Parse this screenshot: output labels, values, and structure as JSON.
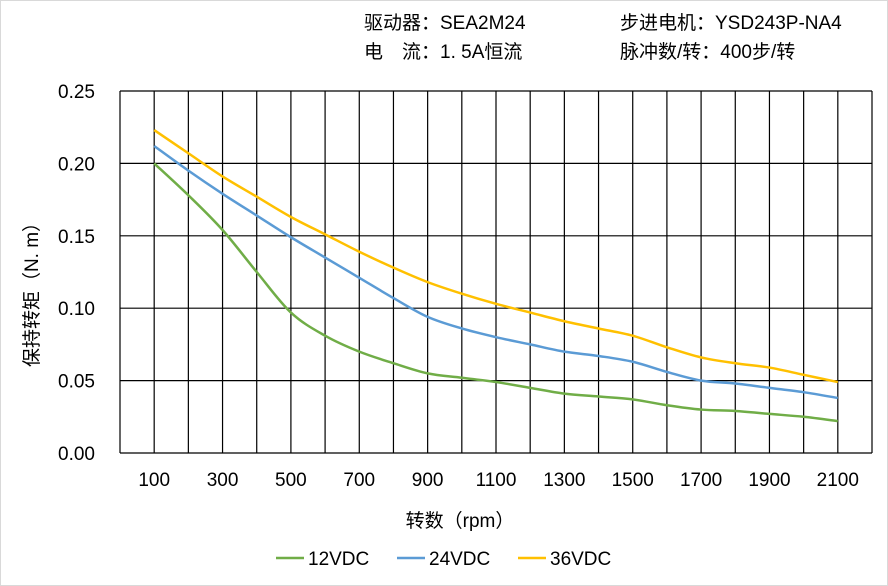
{
  "header": {
    "driver": "驱动器：SEA2M24",
    "motor": "步进电机：YSD243P-NA4",
    "current": "电　流：1. 5A恒流",
    "pulses": "脉冲数/转：400步/转"
  },
  "chart_data": {
    "type": "line",
    "title": "",
    "xlabel": "转数（rpm）",
    "ylabel": "保持转矩（N. m）",
    "xlim": [
      0,
      2200
    ],
    "ylim": [
      0,
      0.25
    ],
    "grid": true,
    "legend": "bottom",
    "x_ticks": [
      "100",
      "300",
      "500",
      "700",
      "900",
      "1100",
      "1300",
      "1500",
      "1700",
      "1900",
      "2100"
    ],
    "y_ticks": [
      "0.00",
      "0.05",
      "0.10",
      "0.15",
      "0.20",
      "0.25"
    ],
    "x": [
      100,
      200,
      300,
      400,
      500,
      600,
      700,
      800,
      900,
      1000,
      1100,
      1200,
      1300,
      1400,
      1500,
      1600,
      1700,
      1800,
      1900,
      2000,
      2100
    ],
    "series": [
      {
        "name": "12VDC",
        "color": "#70ad47",
        "values": [
          0.2,
          0.178,
          0.154,
          0.125,
          0.097,
          0.081,
          0.07,
          0.062,
          0.055,
          0.052,
          0.049,
          0.045,
          0.041,
          0.039,
          0.037,
          0.033,
          0.03,
          0.029,
          0.027,
          0.025,
          0.022
        ]
      },
      {
        "name": "24VDC",
        "color": "#5b9bd5",
        "values": [
          0.212,
          0.195,
          0.179,
          0.164,
          0.149,
          0.135,
          0.121,
          0.107,
          0.094,
          0.086,
          0.08,
          0.075,
          0.07,
          0.067,
          0.063,
          0.056,
          0.05,
          0.048,
          0.045,
          0.042,
          0.038
        ]
      },
      {
        "name": "36VDC",
        "color": "#ffc000",
        "values": [
          0.223,
          0.207,
          0.191,
          0.177,
          0.163,
          0.151,
          0.139,
          0.128,
          0.118,
          0.11,
          0.103,
          0.097,
          0.091,
          0.086,
          0.081,
          0.073,
          0.066,
          0.062,
          0.059,
          0.054,
          0.049
        ]
      }
    ]
  }
}
